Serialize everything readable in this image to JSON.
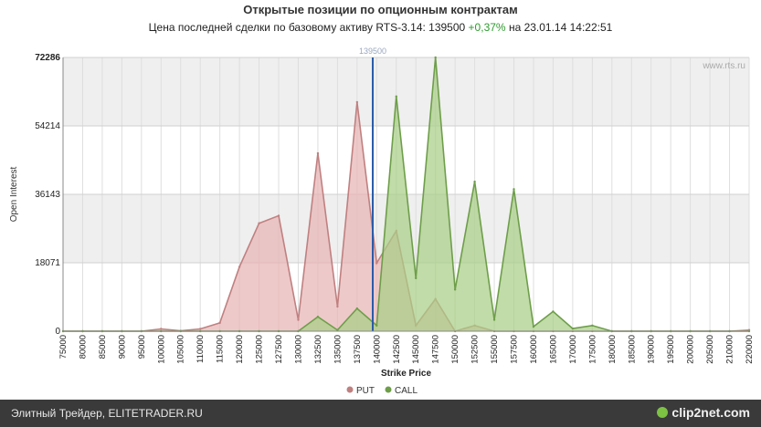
{
  "header": {
    "title": "Открытые позиции по опционным контрактам",
    "subtitle_prefix": "Цена последней сделки по базовому активу RTS-3.14: 139500",
    "subtitle_change": "+0,37%",
    "subtitle_suffix": "на 23.01.14 14:22:51"
  },
  "watermark": "www.rts.ru",
  "footer": {
    "text": "Элитный Трейдер, ELITETRADER.RU",
    "brand": "clip2net.com"
  },
  "colors": {
    "put_fill": "#e8b4b4",
    "put_line": "#c08080",
    "call_fill": "#a9cf86",
    "call_line": "#6e9e4a",
    "marker": "#2a5aa8",
    "band": "#efefef"
  },
  "chart_data": {
    "type": "area",
    "xlabel": "Strike Price",
    "ylabel": "Open Interest",
    "ylim": [
      0,
      72286
    ],
    "yticks": [
      0,
      18071,
      36143,
      54214,
      72286
    ],
    "x": [
      75000,
      80000,
      85000,
      90000,
      95000,
      100000,
      105000,
      110000,
      115000,
      120000,
      125000,
      127500,
      130000,
      132500,
      135000,
      137500,
      140000,
      142500,
      145000,
      147500,
      150000,
      152500,
      155000,
      157500,
      160000,
      165000,
      170000,
      175000,
      180000,
      185000,
      190000,
      195000,
      200000,
      205000,
      210000,
      220000
    ],
    "current_price": 139500,
    "current_price_label": "139500",
    "grid": true,
    "legend_position": "bottom",
    "series": [
      {
        "name": "PUT",
        "values": [
          0,
          0,
          0,
          0,
          0,
          600,
          100,
          600,
          2200,
          17000,
          28500,
          30500,
          3000,
          47000,
          6500,
          60500,
          18000,
          26500,
          1500,
          8500,
          0,
          1500,
          0,
          0,
          0,
          0,
          0,
          0,
          0,
          0,
          0,
          0,
          0,
          0,
          0,
          300
        ]
      },
      {
        "name": "CALL",
        "values": [
          0,
          0,
          0,
          0,
          0,
          0,
          0,
          0,
          0,
          0,
          0,
          0,
          0,
          3800,
          300,
          6000,
          1500,
          62000,
          14000,
          72286,
          11000,
          39500,
          3000,
          37500,
          1200,
          5200,
          700,
          1500,
          0,
          0,
          0,
          0,
          0,
          0,
          0,
          0
        ]
      }
    ]
  }
}
